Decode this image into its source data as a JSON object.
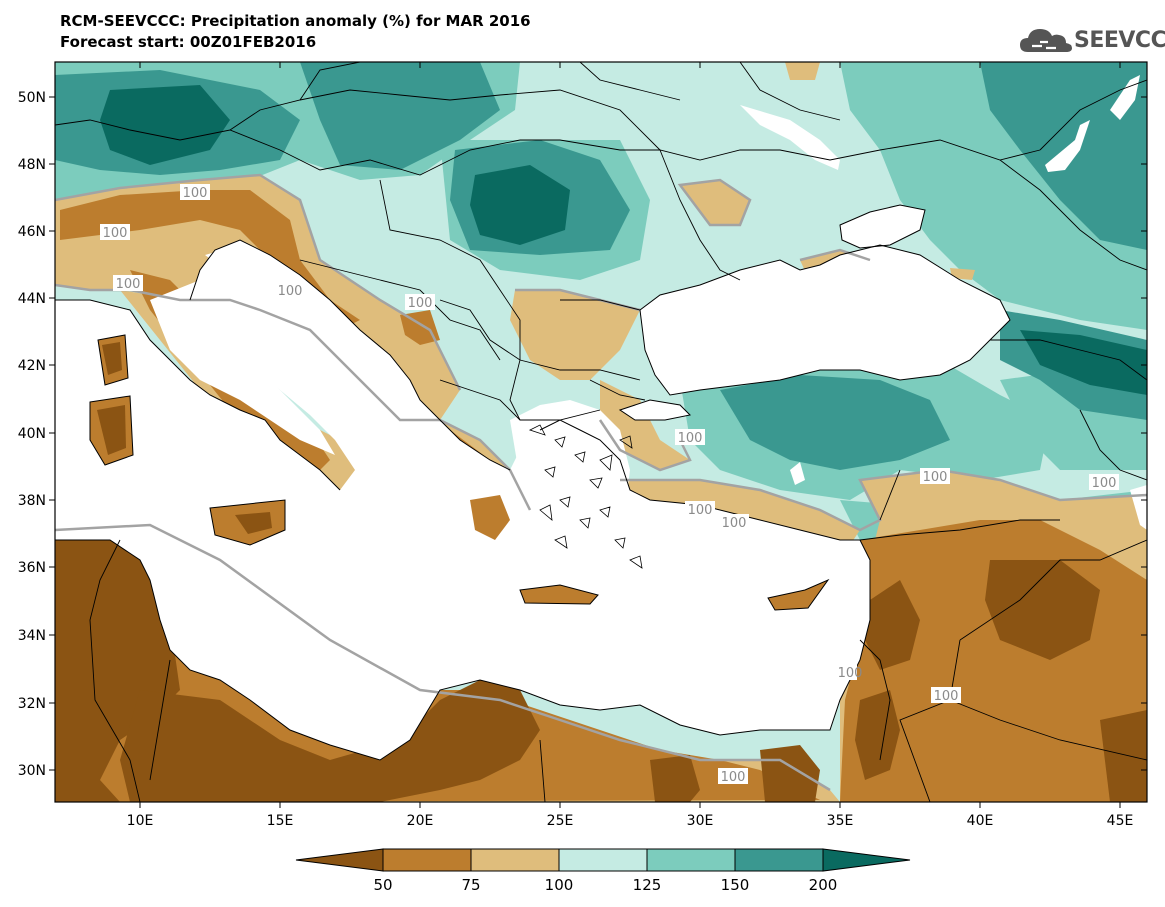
{
  "title_line1": "RCM-SEEVCCC: Precipitation anomaly (%) for MAR 2016",
  "title_line2": "Forecast start: 00Z01FEB2016",
  "logo_text": "SEEVCCC",
  "map": {
    "lon_range": [
      7,
      46
    ],
    "lat_range": [
      29,
      51
    ],
    "lat_ticks": [
      "50N",
      "48N",
      "46N",
      "44N",
      "42N",
      "40N",
      "38N",
      "36N",
      "34N",
      "32N",
      "30N"
    ],
    "lon_ticks": [
      "10E",
      "15E",
      "20E",
      "25E",
      "30E",
      "35E",
      "40E",
      "45E"
    ],
    "contour_labels": [
      "100",
      "100",
      "100",
      "100",
      "100",
      "100",
      "100",
      "100",
      "100",
      "100",
      "100",
      "100",
      "100"
    ]
  },
  "colorbar": {
    "labels": [
      "50",
      "75",
      "100",
      "125",
      "150",
      "200"
    ],
    "colors": {
      "lt50": "#8b5413",
      "50_75": "#bc7d2e",
      "75_100": "#dfbd7c",
      "100_125": "#c5ebe3",
      "125_150": "#7cccbd",
      "150_200": "#3a9890",
      "gt200": "#0a6a60"
    }
  }
}
